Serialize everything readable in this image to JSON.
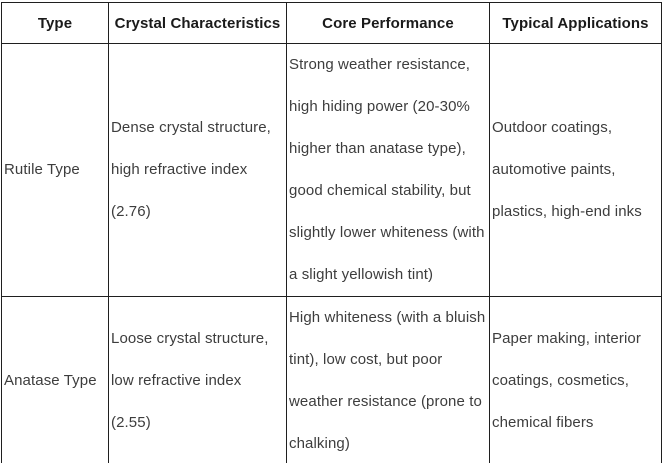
{
  "table": {
    "headers": {
      "type": "Type",
      "characteristics": "Crystal Characteristics",
      "performance": "Core Performance",
      "applications": "Typical Applications"
    },
    "rows": [
      {
        "type": "Rutile Type",
        "characteristics": "Dense crystal structure, high refractive index (2.76)",
        "performance": "Strong weather resistance, high hiding power (20-30% higher than anatase type), good chemical stability, but slightly lower whiteness (with a slight yellowish tint)",
        "applications": "Outdoor coatings, automotive paints, plastics, high-end inks"
      },
      {
        "type": "Anatase Type",
        "characteristics": "Loose crystal structure, low refractive index (2.55)",
        "performance": "High whiteness (with a bluish tint), low cost, but poor weather resistance (prone to chalking)",
        "applications": "Paper making, interior coatings, cosmetics, chemical fibers"
      }
    ]
  },
  "colors": {
    "border": "#1f1f1f",
    "header_text": "#1a1a1a",
    "body_text": "#3d3d3d",
    "background": "#ffffff"
  }
}
